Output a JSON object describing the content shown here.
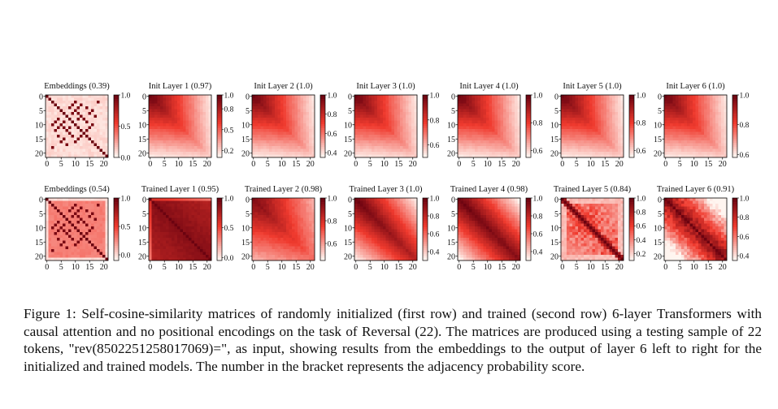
{
  "figure": {
    "caption": "Figure 1: Self-cosine-similarity matrices of randomly initialized (first row) and trained (second row) 6-layer Transformers with causal attention and no positional encodings on the task of Reversal (22). The matrices are produced using a testing sample of 22 tokens, \"rev(8502251258017069)=\", as input, showing results from the embeddings to the output of layer 6 left to right for the initialized and trained models. The number in the bracket represents the adjacency probability score.",
    "axis_ticks": [
      "0",
      "5",
      "10",
      "15",
      "20"
    ],
    "colors": {
      "low": "#fff5f0",
      "mid": "#f03a2e",
      "high": "#6b0310"
    }
  },
  "chart_data": [
    {
      "type": "heatmap",
      "row": "initialized",
      "title": "Embeddings (0.39)",
      "matrix_size": 22,
      "pattern": "embed",
      "colorbar_ticks": [
        "1.0",
        "0.5",
        "0.0"
      ],
      "colorbar_range": [
        0.0,
        1.0
      ]
    },
    {
      "type": "heatmap",
      "row": "initialized",
      "title": "Init Layer 1 (0.97)",
      "matrix_size": 22,
      "pattern": "init",
      "colorbar_ticks": [
        "1.0",
        "0.8",
        "0.5",
        "0.2"
      ],
      "colorbar_range": [
        0.1,
        1.0
      ]
    },
    {
      "type": "heatmap",
      "row": "initialized",
      "title": "Init Layer 2 (1.0)",
      "matrix_size": 22,
      "pattern": "init",
      "colorbar_ticks": [
        "1.0",
        "0.8",
        "0.6",
        "0.4"
      ],
      "colorbar_range": [
        0.35,
        1.0
      ]
    },
    {
      "type": "heatmap",
      "row": "initialized",
      "title": "Init Layer 3 (1.0)",
      "matrix_size": 22,
      "pattern": "init",
      "colorbar_ticks": [
        "1.0",
        "0.8",
        "0.6"
      ],
      "colorbar_range": [
        0.5,
        1.0
      ]
    },
    {
      "type": "heatmap",
      "row": "initialized",
      "title": "Init Layer 4 (1.0)",
      "matrix_size": 22,
      "pattern": "init",
      "colorbar_ticks": [
        "1.0",
        "0.8",
        "0.6"
      ],
      "colorbar_range": [
        0.55,
        1.0
      ]
    },
    {
      "type": "heatmap",
      "row": "initialized",
      "title": "Init Layer 5 (1.0)",
      "matrix_size": 22,
      "pattern": "init",
      "colorbar_ticks": [
        "1.0",
        "0.8",
        "0.6"
      ],
      "colorbar_range": [
        0.55,
        1.0
      ]
    },
    {
      "type": "heatmap",
      "row": "initialized",
      "title": "Init Layer 6 (1.0)",
      "matrix_size": 22,
      "pattern": "init",
      "colorbar_ticks": [
        "1.0",
        "0.8",
        "0.6"
      ],
      "colorbar_range": [
        0.58,
        1.0
      ]
    },
    {
      "type": "heatmap",
      "row": "trained",
      "title": "Embeddings (0.54)",
      "matrix_size": 22,
      "pattern": "embed2",
      "colorbar_ticks": [
        "1.0",
        "0.5",
        "0.0"
      ],
      "colorbar_range": [
        -0.1,
        1.0
      ]
    },
    {
      "type": "heatmap",
      "row": "trained",
      "title": "Trained Layer 1 (0.95)",
      "matrix_size": 22,
      "pattern": "t1",
      "colorbar_ticks": [
        "1.0",
        "0.5",
        "0.0"
      ],
      "colorbar_range": [
        -0.05,
        1.0
      ]
    },
    {
      "type": "heatmap",
      "row": "trained",
      "title": "Trained Layer 2 (0.98)",
      "matrix_size": 22,
      "pattern": "t2",
      "colorbar_ticks": [
        "1.0",
        "0.8",
        "0.6"
      ],
      "colorbar_range": [
        0.45,
        1.0
      ]
    },
    {
      "type": "heatmap",
      "row": "trained",
      "title": "Trained Layer 3 (1.0)",
      "matrix_size": 22,
      "pattern": "t3",
      "colorbar_ticks": [
        "1.0",
        "0.8",
        "0.6",
        "0.4"
      ],
      "colorbar_range": [
        0.3,
        1.0
      ]
    },
    {
      "type": "heatmap",
      "row": "trained",
      "title": "Trained Layer 4 (0.98)",
      "matrix_size": 22,
      "pattern": "t4",
      "colorbar_ticks": [
        "1.0",
        "0.8",
        "0.6",
        "0.4"
      ],
      "colorbar_range": [
        0.3,
        1.0
      ]
    },
    {
      "type": "heatmap",
      "row": "trained",
      "title": "Trained Layer 5 (0.84)",
      "matrix_size": 22,
      "pattern": "t5",
      "colorbar_ticks": [
        "1.0",
        "0.8",
        "0.6",
        "0.4",
        "0.2"
      ],
      "colorbar_range": [
        0.1,
        1.0
      ]
    },
    {
      "type": "heatmap",
      "row": "trained",
      "title": "Trained Layer 6 (0.91)",
      "matrix_size": 22,
      "pattern": "t6",
      "colorbar_ticks": [
        "1.0",
        "0.8",
        "0.6",
        "0.4"
      ],
      "colorbar_range": [
        0.35,
        1.0
      ]
    }
  ]
}
